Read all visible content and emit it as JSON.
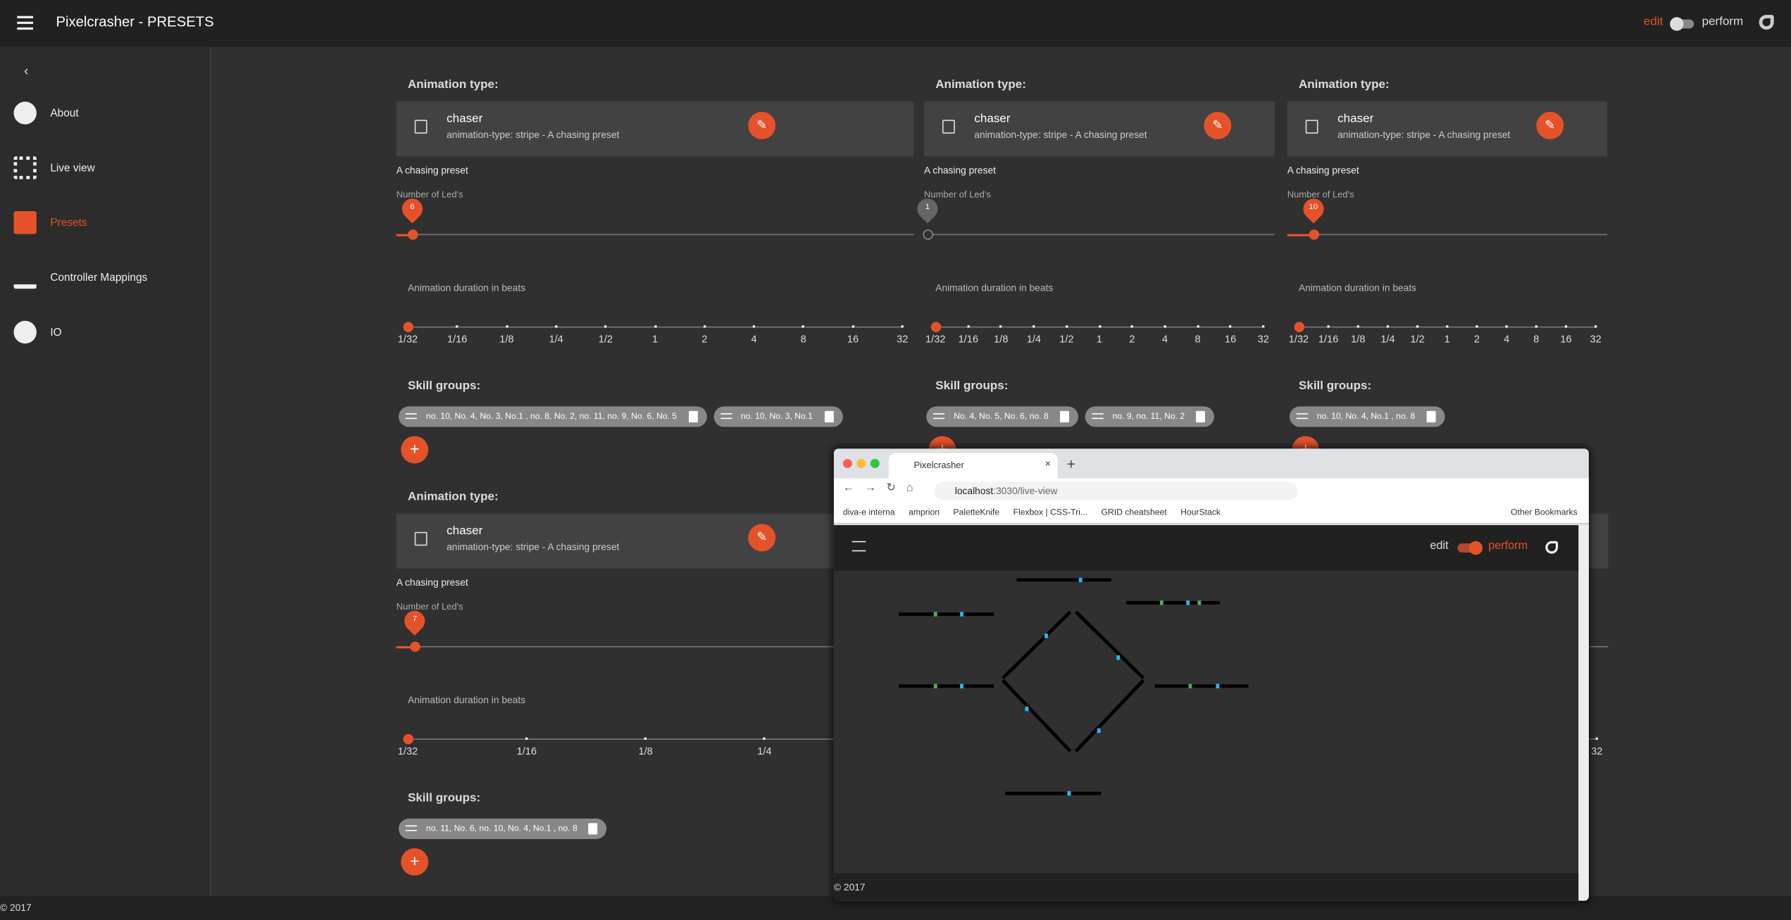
{
  "header": {
    "title": "Pixelcrasher - PRESETS",
    "mode_edit": "edit",
    "mode_perform": "perform"
  },
  "sidebar": {
    "items": [
      "About",
      "Live view",
      "Presets",
      "Controller Mappings",
      "IO"
    ]
  },
  "presets": {
    "type_label": "Animation type:",
    "leds_label": "Number of Led's",
    "duration_label": "Animation duration in beats",
    "skill_label": "Skill groups:",
    "duration_ticks": [
      "1/32",
      "1/16",
      "1/8",
      "1/4",
      "1/2",
      "1",
      "2",
      "4",
      "8",
      "16",
      "32"
    ],
    "cards": [
      {
        "name": "chaser",
        "subtitle": "animation-type: stripe - A chasing preset",
        "description": "A chasing preset",
        "leds": 6,
        "skill_groups": [
          "no. 10, No. 4, No. 3, No.1 , no. 8, No. 2, no. 11, no. 9, No. 6, No. 5",
          "no. 10, No. 3, No.1"
        ]
      },
      {
        "name": "chaser",
        "subtitle": "animation-type: stripe - A chasing preset",
        "description": "A chasing preset",
        "leds": 1,
        "skill_groups": [
          "No. 4, No. 5, No. 6, no. 8",
          "no. 9, no. 11, No. 2"
        ]
      },
      {
        "name": "chaser",
        "subtitle": "animation-type: stripe - A chasing preset",
        "description": "A chasing preset",
        "leds": 10,
        "skill_groups": [
          "no. 10, No. 4, No.1 , no. 8"
        ]
      },
      {
        "name": "chaser",
        "subtitle": "animation-type: stripe - A chasing preset",
        "description": "A chasing preset",
        "leds": 7,
        "skill_groups": [
          "no. 11, No. 6, no. 10, No. 4, No.1 , no. 8"
        ]
      }
    ]
  },
  "footer": "© 2017",
  "browser": {
    "tab": "Pixelcrasher",
    "url_host": "localhost",
    "url_path": ":3030/live-view",
    "bookmarks": [
      "diva-e interna",
      "amprion",
      "PaletteKnife",
      "Flexbox | CSS-Tri...",
      "GRID cheatsheet",
      "HourStack"
    ],
    "other_bookmarks": "Other Bookmarks",
    "mode_edit": "edit",
    "mode_perform": "perform",
    "footer": "© 2017"
  }
}
